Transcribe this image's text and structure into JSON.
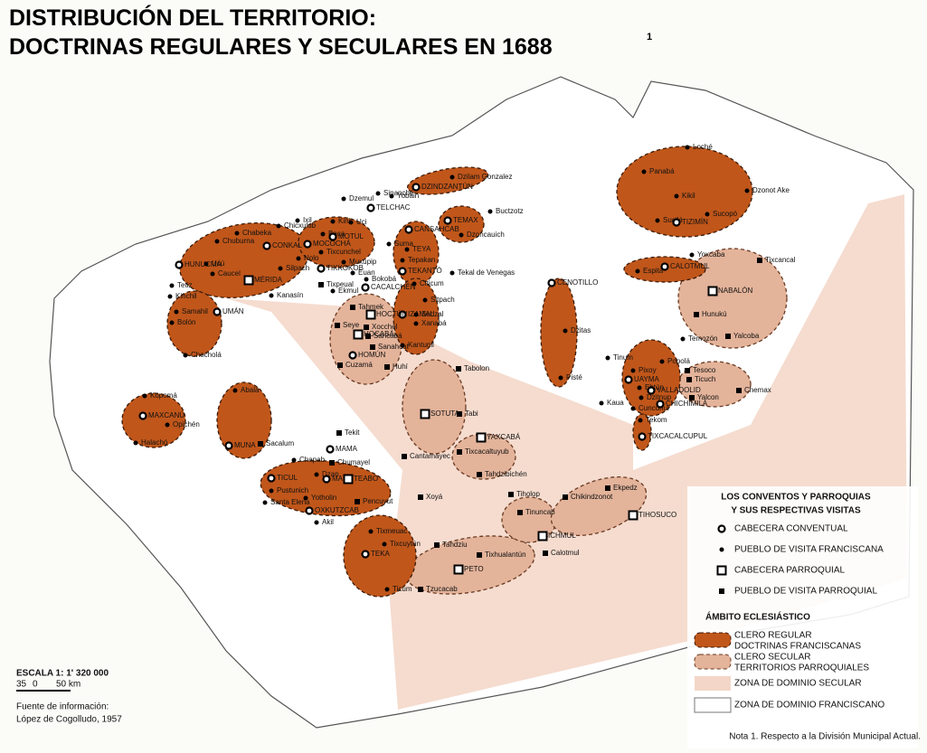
{
  "header": {
    "title": [
      "DISTRIBUCIÓN DEL TERRITORIO:",
      "DOCTRINAS REGULARES Y SECULARES EN 1688"
    ],
    "footnote_mark": "1"
  },
  "places": [
    "Loché",
    "Panabá",
    "Dzonot Ake",
    "Kikil",
    "Sucilá",
    "TIZIMÍN",
    "Sucopó",
    "Dzilam Gonzalez",
    "DZINDZANTÚN",
    "Yobain",
    "Buctzotz",
    "Sinanché",
    "TELCHAC",
    "Dzemul",
    "TEMAX",
    "Dzoncauich",
    "CANSAHCAB",
    "Kini",
    "Ixil",
    "Uci",
    "Chicxulub",
    "Baca",
    "Chabeka",
    "CONKAL",
    "MOCOCHÁ",
    "MOTUL",
    "Suma",
    "TEYA",
    "Chuburna",
    "Tixcunchel",
    "Nolo",
    "Muxupip",
    "Tepakan",
    "HUNUCMÁ",
    "Ucú",
    "Caucel",
    "MÉRIDA",
    "TIXKOKOB",
    "Euan",
    "Bokobá",
    "CACALCHÉN",
    "TEKANTÓ",
    "Citicum",
    "Tekal de Venegas",
    "Tixpeual",
    "Ekmul",
    "Silpach",
    "Kanasín",
    "Tetiz",
    "Kinchil",
    "Samahil",
    "UMÁN",
    "Bolón",
    "Chocholá",
    "IZAMAL",
    "Sitpach",
    "Sudzal",
    "Xanabá",
    "Kantunil",
    "HOCTÚN",
    "Tahmek",
    "Xocchel",
    "Sahcabá",
    "Seye",
    "HOCABÁ",
    "Sanahcat",
    "Huhí",
    "HOMÚN",
    "Cuzamá",
    "CENOTILLO",
    "Dzitas",
    "Pisté",
    "Tabolon",
    "SOTUTA",
    "Tabi",
    "YAXCABÁ",
    "Tixcacaltuyub",
    "Tahdzibichén",
    "Cantamayec",
    "Kopomá",
    "MAXCANÚ",
    "Opichén",
    "Halachó",
    "Abalá",
    "MUNA",
    "Sacalum",
    "Tekit",
    "MAMA",
    "Chapab",
    "Chumayel",
    "Dzan",
    "MANÍ",
    "TEABO",
    "TICUL",
    "Pustunich",
    "Santa Elena",
    "OXKUTZCAB",
    "Yotholin",
    "Pencuyut",
    "Akil",
    "Xoyá",
    "Tixmeuac",
    "Tixcuytún",
    "TEKA",
    "Ticum",
    "Tiholop",
    "Tinuncab",
    "ICHMUL",
    "Tahdziu",
    "Tixhualantún",
    "Calotmul",
    "PETO",
    "Tzucacab",
    "Chikindzonot",
    "Ekpedz",
    "TIHOSUCO",
    "Tixcancal",
    "Yoxcaba",
    "Espita",
    "CALOTMUL",
    "NABALÓN",
    "Hunukú",
    "Yalcoba",
    "Temozón",
    "Tinum",
    "Pixoy",
    "Popolá",
    "Tesoco",
    "Ticuch",
    "UAYMA",
    "Ebtún",
    "VALLADOLID",
    "Dzitnup",
    "Yalcon",
    "Chemax",
    "Kaua",
    "Cuncunul",
    "CHICHIMILÁ",
    "Tekom",
    "TIXCACALCUPUL"
  ],
  "legend": {
    "heading": [
      "LOS CONVENTOS Y PARROQUIAS",
      "Y SUS RESPECTIVAS VISITAS"
    ],
    "markers": [
      "CABECERA CONVENTUAL",
      "PUEBLO DE VISITA FRANCISCANA",
      "CABECERA PARROQUIAL",
      "PUEBLO DE VISITA PARROQUIAL"
    ],
    "ambito": "ÁMBITO ECLESIÁSTICO",
    "zones": [
      [
        "CLERO REGULAR",
        "DOCTRINAS FRANCISCANAS"
      ],
      [
        "CLERO SECULAR",
        "TERRITORIOS PARROQUIALES"
      ],
      [
        "ZONA DE DOMINIO SECULAR"
      ],
      [
        "ZONA DE DOMINIO FRANCISCANO"
      ]
    ]
  },
  "scale": {
    "title": "ESCALA 1: 1' 320 000",
    "ticks": [
      "35",
      "0",
      "50 km"
    ]
  },
  "source": [
    "Fuente de información:",
    "López de Cogolludo, 1957"
  ],
  "note": "Nota 1. Respecto a la División Municipal Actual."
}
